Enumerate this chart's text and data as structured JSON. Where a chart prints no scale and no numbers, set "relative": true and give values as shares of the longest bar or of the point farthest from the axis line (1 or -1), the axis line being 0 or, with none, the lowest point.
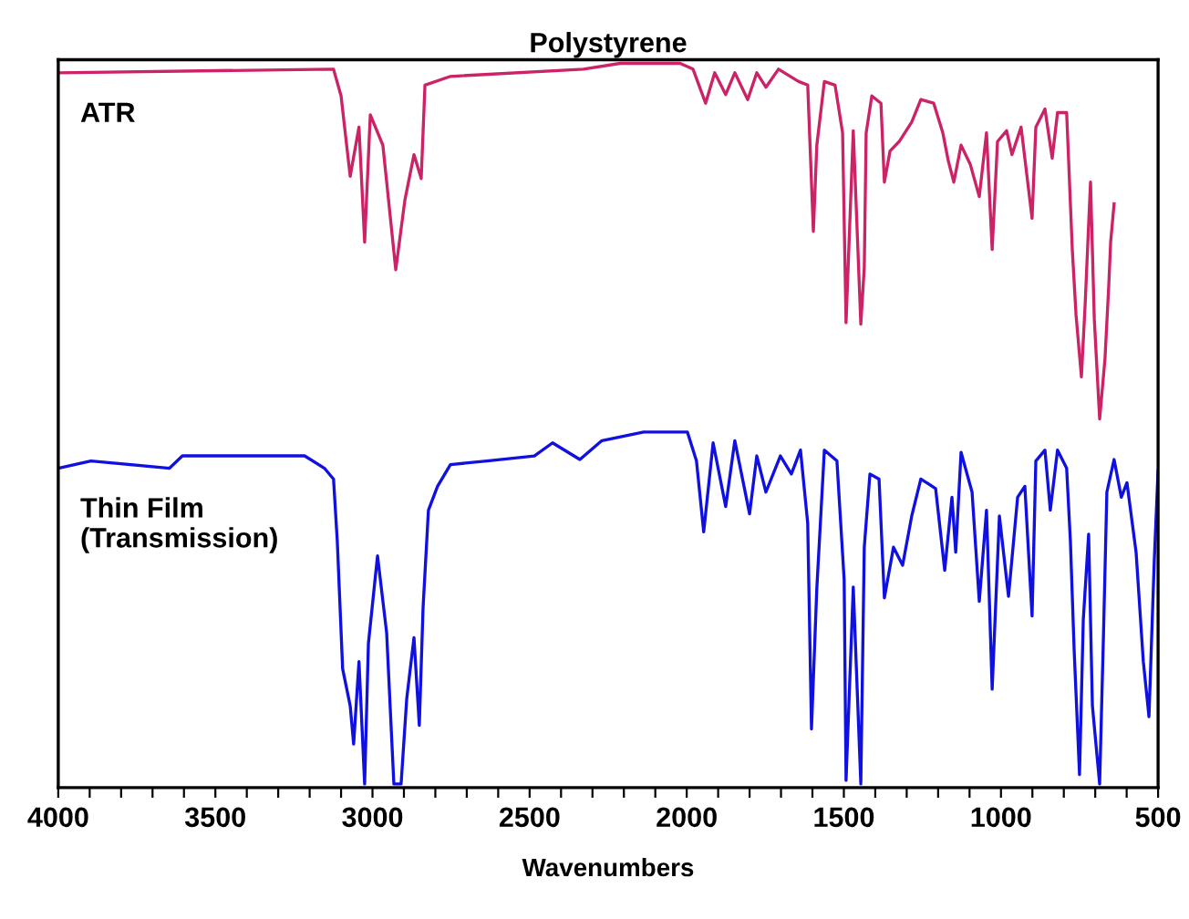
{
  "chart_data": {
    "type": "line",
    "title": "Polystyrene",
    "xlabel": "Wavenumbers",
    "relative": true,
    "grid": false,
    "legend": false,
    "marker": "none",
    "line_style": "solid",
    "xlim": [
      4000,
      500
    ],
    "xticks": [
      4000,
      {
        "value": 3900,
        "label": null
      },
      {
        "value": 3800,
        "label": null
      },
      {
        "value": 3700,
        "label": null
      },
      {
        "value": 3600,
        "label": null
      },
      3500,
      {
        "value": 3400,
        "label": null
      },
      {
        "value": 3300,
        "label": null
      },
      {
        "value": 3200,
        "label": null
      },
      {
        "value": 3100,
        "label": null
      },
      3000,
      {
        "value": 2900,
        "label": null
      },
      {
        "value": 2800,
        "label": null
      },
      {
        "value": 2700,
        "label": null
      },
      {
        "value": 2600,
        "label": null
      },
      2500,
      {
        "value": 2400,
        "label": null
      },
      {
        "value": 2300,
        "label": null
      },
      {
        "value": 2200,
        "label": null
      },
      {
        "value": 2100,
        "label": null
      },
      2000,
      {
        "value": 1900,
        "label": null
      },
      {
        "value": 1800,
        "label": null
      },
      {
        "value": 1700,
        "label": null
      },
      {
        "value": 1600,
        "label": null
      },
      1500,
      {
        "value": 1400,
        "label": null
      },
      {
        "value": 1300,
        "label": null
      },
      {
        "value": 1200,
        "label": null
      },
      {
        "value": 1100,
        "label": null
      },
      1000,
      {
        "value": 900,
        "label": null
      },
      {
        "value": 800,
        "label": null
      },
      {
        "value": 700,
        "label": null
      },
      {
        "value": 600,
        "label": null
      },
      500
    ],
    "series": [
      {
        "name": "ATR",
        "color": "#cc2266",
        "x": [
          4000,
          3124,
          3100,
          3071,
          3043,
          3025,
          3007,
          2967,
          2926,
          2897,
          2868,
          2845,
          2833,
          2752,
          2329,
          2212,
          2021,
          1980,
          1940,
          1911,
          1876,
          1847,
          1806,
          1777,
          1748,
          1708,
          1644,
          1615,
          1597,
          1586,
          1562,
          1528,
          1504,
          1493,
          1470,
          1446,
          1435,
          1429,
          1411,
          1382,
          1371,
          1353,
          1324,
          1284,
          1255,
          1214,
          1185,
          1168,
          1150,
          1127,
          1098,
          1069,
          1046,
          1028,
          1011,
          982,
          965,
          936,
          901,
          889,
          860,
          837,
          820,
          791,
          773,
          761,
          744,
          732,
          721,
          715,
          703,
          686,
          669,
          657,
          651,
          640
        ],
        "values": [
          0.987,
          0.992,
          0.955,
          0.844,
          0.912,
          0.753,
          0.929,
          0.887,
          0.715,
          0.811,
          0.874,
          0.841,
          0.97,
          0.982,
          0.992,
          1.0,
          1.0,
          0.992,
          0.945,
          0.987,
          0.957,
          0.987,
          0.95,
          0.987,
          0.967,
          0.992,
          0.975,
          0.97,
          0.768,
          0.887,
          0.975,
          0.97,
          0.904,
          0.642,
          0.907,
          0.64,
          0.718,
          0.904,
          0.955,
          0.945,
          0.836,
          0.879,
          0.892,
          0.919,
          0.95,
          0.945,
          0.904,
          0.866,
          0.836,
          0.887,
          0.861,
          0.816,
          0.904,
          0.743,
          0.892,
          0.907,
          0.874,
          0.912,
          0.786,
          0.912,
          0.937,
          0.869,
          0.932,
          0.932,
          0.743,
          0.652,
          0.567,
          0.668,
          0.778,
          0.836,
          0.647,
          0.509,
          0.592,
          0.693,
          0.753,
          0.806
        ]
      },
      {
        "name": "Thin Film\n(Transmission)",
        "color": "#1010e0",
        "x": [
          4000,
          3896,
          3646,
          3605,
          3216,
          3153,
          3124,
          3112,
          3095,
          3071,
          3060,
          3043,
          3025,
          3013,
          2984,
          2955,
          2932,
          2909,
          2891,
          2868,
          2851,
          2839,
          2822,
          2793,
          2752,
          2636,
          2485,
          2427,
          2340,
          2270,
          2137,
          1998,
          1969,
          1946,
          1916,
          1876,
          1847,
          1800,
          1777,
          1748,
          1702,
          1667,
          1638,
          1615,
          1603,
          1586,
          1562,
          1522,
          1499,
          1493,
          1470,
          1446,
          1435,
          1417,
          1388,
          1371,
          1342,
          1313,
          1284,
          1255,
          1208,
          1179,
          1156,
          1144,
          1127,
          1092,
          1069,
          1046,
          1028,
          1005,
          976,
          947,
          924,
          901,
          889,
          860,
          843,
          820,
          791,
          779,
          767,
          750,
          738,
          721,
          709,
          686,
          674,
          663,
          640,
          617,
          599,
          570,
          547,
          529,
          512,
          500
        ],
        "values": [
          0.441,
          0.451,
          0.441,
          0.458,
          0.458,
          0.441,
          0.426,
          0.34,
          0.164,
          0.113,
          0.06,
          0.174,
          0.005,
          0.199,
          0.32,
          0.214,
          0.005,
          0.005,
          0.123,
          0.207,
          0.086,
          0.249,
          0.383,
          0.416,
          0.446,
          0.451,
          0.458,
          0.476,
          0.453,
          0.479,
          0.491,
          0.491,
          0.451,
          0.353,
          0.476,
          0.388,
          0.479,
          0.378,
          0.458,
          0.408,
          0.458,
          0.433,
          0.466,
          0.365,
          0.081,
          0.275,
          0.466,
          0.451,
          0.287,
          0.01,
          0.277,
          0.005,
          0.332,
          0.433,
          0.426,
          0.262,
          0.332,
          0.307,
          0.375,
          0.426,
          0.413,
          0.3,
          0.401,
          0.325,
          0.463,
          0.408,
          0.257,
          0.383,
          0.136,
          0.375,
          0.264,
          0.401,
          0.416,
          0.237,
          0.451,
          0.466,
          0.383,
          0.466,
          0.441,
          0.34,
          0.189,
          0.018,
          0.232,
          0.35,
          0.113,
          0.005,
          0.207,
          0.408,
          0.453,
          0.401,
          0.421,
          0.325,
          0.174,
          0.098,
          0.315,
          0.438
        ]
      }
    ]
  }
}
